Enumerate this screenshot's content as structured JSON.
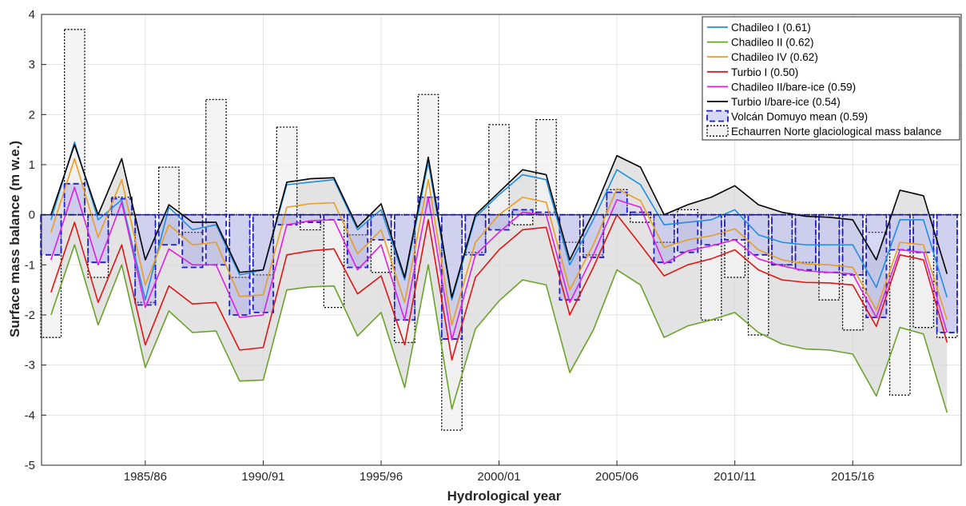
{
  "chart_data": {
    "type": "line",
    "xlabel": "Hydrological year",
    "ylabel": "Surface mass balance (m w.e.)",
    "ylim": [
      -5,
      4
    ],
    "yticks": [
      -5,
      -4,
      -3,
      -2,
      -1,
      0,
      1,
      2,
      3,
      4
    ],
    "xlim": [
      1980.6,
      2019.6
    ],
    "xtick_years": [
      1985,
      1990,
      1995,
      2000,
      2005,
      2010,
      2015
    ],
    "xtick_labels": [
      "1985/86",
      "1990/91",
      "1995/96",
      "2000/01",
      "2005/06",
      "2010/11",
      "2015/16"
    ],
    "grid": true,
    "legend_position": "top-right",
    "years": [
      1981,
      1982,
      1983,
      1984,
      1985,
      1986,
      1987,
      1988,
      1989,
      1990,
      1991,
      1992,
      1993,
      1994,
      1995,
      1996,
      1997,
      1998,
      1999,
      2000,
      2001,
      2002,
      2003,
      2004,
      2005,
      2006,
      2007,
      2008,
      2009,
      2010,
      2011,
      2012,
      2013,
      2014,
      2015,
      2016,
      2017,
      2018,
      2019
    ],
    "series": [
      {
        "name": "Chadileo I (0.61)",
        "color": "#1f8fe0",
        "values": [
          -0.1,
          1.45,
          -0.1,
          0.3,
          -1.7,
          0.15,
          -0.3,
          -0.2,
          -1.2,
          -1.1,
          0.6,
          0.65,
          0.7,
          -0.3,
          0.1,
          -1.3,
          1.05,
          -1.7,
          -0.05,
          0.4,
          0.8,
          0.7,
          -1.0,
          -0.1,
          0.9,
          0.6,
          -0.2,
          -0.15,
          -0.1,
          0.1,
          -0.4,
          -0.55,
          -0.6,
          -0.6,
          -0.6,
          -1.45,
          -0.1,
          -0.1,
          -1.65
        ]
      },
      {
        "name": "Chadileo II (0.62)",
        "color": "#6aa329",
        "values": [
          -2.0,
          -0.6,
          -2.2,
          -1.0,
          -3.05,
          -1.92,
          -2.35,
          -2.32,
          -3.32,
          -3.3,
          -1.5,
          -1.44,
          -1.42,
          -2.42,
          -1.95,
          -3.45,
          -1.0,
          -3.88,
          -2.28,
          -1.72,
          -1.3,
          -1.4,
          -3.15,
          -2.3,
          -1.1,
          -1.4,
          -2.45,
          -2.22,
          -2.1,
          -1.95,
          -2.35,
          -2.58,
          -2.68,
          -2.7,
          -2.78,
          -3.62,
          -2.25,
          -2.38,
          -3.95
        ]
      },
      {
        "name": "Chadileo IV (0.62)",
        "color": "#e89e22",
        "values": [
          -0.35,
          1.12,
          -0.45,
          0.7,
          -1.4,
          -0.2,
          -0.6,
          -0.55,
          -1.63,
          -1.6,
          0.15,
          0.22,
          0.24,
          -0.78,
          -0.3,
          -1.75,
          0.7,
          -2.2,
          -0.55,
          0.0,
          0.35,
          0.25,
          -1.5,
          -0.6,
          0.52,
          0.28,
          -0.65,
          -0.5,
          -0.42,
          -0.28,
          -0.7,
          -0.9,
          -0.98,
          -1.0,
          -1.05,
          -1.9,
          -0.55,
          -0.6,
          -2.1
        ]
      },
      {
        "name": "Turbio I (0.50)",
        "color": "#e01515",
        "values": [
          -1.55,
          -0.15,
          -1.75,
          -0.6,
          -2.6,
          -1.42,
          -1.78,
          -1.75,
          -2.7,
          -2.65,
          -0.8,
          -0.72,
          -0.68,
          -1.58,
          -1.22,
          -2.6,
          -0.1,
          -2.9,
          -1.25,
          -0.7,
          -0.3,
          -0.25,
          -2.0,
          -1.05,
          0.0,
          -0.6,
          -1.22,
          -1.0,
          -0.88,
          -0.7,
          -1.1,
          -1.3,
          -1.35,
          -1.36,
          -1.4,
          -2.23,
          -0.8,
          -0.9,
          -2.55
        ]
      },
      {
        "name": "Chadileo II/bare-ice (0.59)",
        "color": "#e020e0",
        "values": [
          -0.9,
          0.55,
          -1.0,
          0.25,
          -1.85,
          -0.68,
          -1.0,
          -1.0,
          -2.05,
          -2.0,
          -0.2,
          -0.12,
          -0.1,
          -1.1,
          -0.6,
          -2.1,
          0.35,
          -2.5,
          -0.8,
          -0.35,
          0.05,
          0.0,
          -1.75,
          -0.8,
          0.3,
          0.15,
          -0.98,
          -0.72,
          -0.62,
          -0.5,
          -0.88,
          -1.02,
          -1.12,
          -1.15,
          -1.18,
          -2.05,
          -0.7,
          -0.75,
          -2.35
        ]
      },
      {
        "name": "Turbio I/bare-ice (0.54)",
        "color": "#000000",
        "values": [
          0.0,
          1.4,
          0.0,
          1.12,
          -0.9,
          0.2,
          -0.15,
          -0.15,
          -1.15,
          -1.1,
          0.65,
          0.72,
          0.74,
          -0.25,
          0.22,
          -1.25,
          1.15,
          -1.65,
          0.0,
          0.45,
          0.9,
          0.8,
          -0.9,
          0.05,
          1.18,
          0.95,
          0.0,
          0.2,
          0.35,
          0.58,
          0.2,
          0.05,
          -0.03,
          -0.05,
          -0.1,
          -0.9,
          0.49,
          0.38,
          -1.18
        ]
      },
      {
        "name": "Volcán Domuyo mean (0.59)",
        "color": "#1c1cd0",
        "style": "dashed-bar",
        "values": [
          -0.8,
          0.62,
          -0.95,
          0.32,
          -1.8,
          -0.6,
          -1.05,
          -1.0,
          -2.0,
          -1.95,
          -0.2,
          -0.15,
          -0.1,
          -1.05,
          -0.5,
          -2.1,
          0.35,
          -2.48,
          -0.8,
          -0.3,
          0.1,
          0.05,
          -1.7,
          -0.85,
          0.45,
          0.05,
          -0.95,
          -0.75,
          -0.6,
          -0.5,
          -0.8,
          -1.0,
          -1.1,
          -1.15,
          -1.2,
          -2.05,
          -0.7,
          -0.75,
          -2.35
        ]
      },
      {
        "name": "Echaurren Norte glaciological mass balance",
        "color": "#000000",
        "style": "dotted-bar",
        "values": [
          -2.45,
          3.7,
          -1.25,
          0.35,
          -1.75,
          0.95,
          -0.35,
          2.3,
          -1.25,
          -1.2,
          1.75,
          -0.3,
          -1.85,
          -0.4,
          -1.15,
          -2.55,
          2.4,
          -4.3,
          -0.75,
          1.8,
          -0.2,
          1.9,
          -0.55,
          -0.8,
          0.5,
          -0.15,
          -0.55,
          0.1,
          -2.1,
          -1.25,
          -2.4,
          -1.0,
          -0.95,
          -1.7,
          -2.3,
          -0.35,
          -3.6,
          -2.25,
          -2.45
        ]
      }
    ]
  }
}
